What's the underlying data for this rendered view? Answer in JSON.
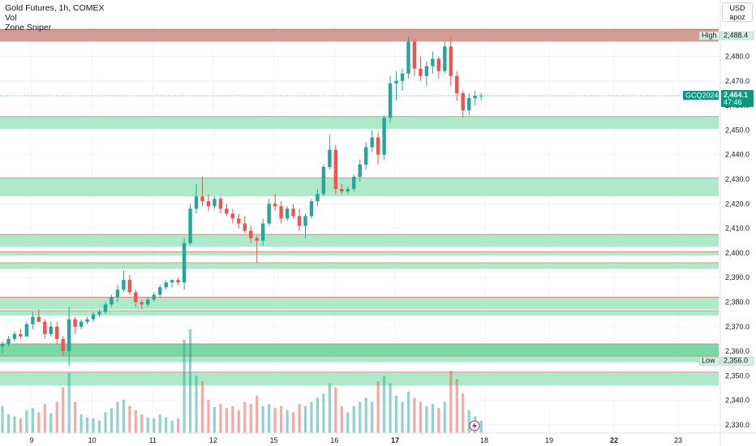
{
  "legend": {
    "symbol": "Gold Futures, 1h, COMEX",
    "vol": "Vol",
    "indicator": "Zone Sniper"
  },
  "scale": {
    "currency": "USD",
    "user": "apoz"
  },
  "tags": {
    "high_label": "High",
    "high_value": "2,488.4",
    "low_label": "Low",
    "low_value": "2,356.0",
    "ticker": "GCQ2024",
    "last_price": "2,464.1",
    "countdown": "47:46"
  },
  "colors": {
    "up": "#26a69a",
    "down": "#ef5350",
    "zone_green": "#a5e8c3",
    "zone_green_dark": "#6cd49a",
    "zone_red": "#c98b80",
    "zone_border_red": "#e57373"
  },
  "chart_data": {
    "type": "candlestick",
    "ylim": [
      2326,
      2491
    ],
    "yticks": [
      "2,330.0",
      "2,340.0",
      "2,350.0",
      "2,360.0",
      "2,370.0",
      "2,380.0",
      "2,390.0",
      "2,400.0",
      "2,410.0",
      "2,420.0",
      "2,430.0",
      "2,440.0",
      "2,450.0",
      "2,460.0",
      "2,470.0",
      "2,480.0"
    ],
    "xlabels": [
      "9",
      "10",
      "11",
      "12",
      "15",
      "16",
      "17",
      "18",
      "19",
      "22",
      "23"
    ],
    "day_dividers": [
      {
        "label": "9",
        "index": 4
      },
      {
        "label": "10",
        "index": 14
      },
      {
        "label": "11",
        "index": 24
      },
      {
        "label": "12",
        "index": 34
      },
      {
        "label": "15",
        "index": 44
      },
      {
        "label": "16",
        "index": 54
      },
      {
        "label": "17",
        "index": 64
      }
    ],
    "future_labels": [
      "18",
      "19",
      "22",
      "23"
    ],
    "zones": [
      {
        "from": 2486,
        "to": 2491,
        "style": "red"
      },
      {
        "from": 2450.5,
        "to": 2455.5,
        "style": "green"
      },
      {
        "from": 2423,
        "to": 2430.5,
        "style": "green"
      },
      {
        "from": 2402.5,
        "to": 2407.5,
        "style": "green"
      },
      {
        "from": 2399,
        "to": 2400.5,
        "style": "green"
      },
      {
        "from": 2393.5,
        "to": 2396,
        "style": "green"
      },
      {
        "from": 2377,
        "to": 2382,
        "style": "green"
      },
      {
        "from": 2374.5,
        "to": 2376.5,
        "style": "green"
      },
      {
        "from": 2358,
        "to": 2363,
        "style": "greendark"
      },
      {
        "from": 2355.5,
        "to": 2358,
        "style": "green"
      },
      {
        "from": 2346,
        "to": 2351.5,
        "style": "green"
      }
    ],
    "candles": [
      [
        2362,
        2364,
        2359,
        2363,
        26
      ],
      [
        2363,
        2366,
        2362,
        2365,
        18
      ],
      [
        2365,
        2368,
        2364,
        2367,
        16
      ],
      [
        2367,
        2369,
        2365,
        2366,
        14
      ],
      [
        2366,
        2372,
        2366,
        2371,
        22
      ],
      [
        2371,
        2376,
        2369,
        2374,
        24
      ],
      [
        2374,
        2377,
        2372,
        2372,
        20
      ],
      [
        2372,
        2373,
        2365,
        2367,
        28
      ],
      [
        2367,
        2372,
        2366,
        2370,
        19
      ],
      [
        2370,
        2372,
        2363,
        2365,
        30
      ],
      [
        2365,
        2366,
        2358,
        2360,
        44
      ],
      [
        2360,
        2378,
        2354,
        2373,
        58
      ],
      [
        2373,
        2374,
        2367,
        2370,
        30
      ],
      [
        2370,
        2373,
        2369,
        2372,
        18
      ],
      [
        2372,
        2374,
        2371,
        2373,
        15
      ],
      [
        2373,
        2376,
        2372,
        2375,
        14
      ],
      [
        2375,
        2377,
        2374,
        2376,
        12
      ],
      [
        2376,
        2380,
        2375,
        2379,
        20
      ],
      [
        2379,
        2383,
        2378,
        2382,
        24
      ],
      [
        2382,
        2387,
        2380,
        2385,
        30
      ],
      [
        2385,
        2393,
        2384,
        2389,
        32
      ],
      [
        2389,
        2391,
        2383,
        2384,
        26
      ],
      [
        2384,
        2385,
        2378,
        2380,
        22
      ],
      [
        2380,
        2381,
        2377,
        2379,
        18
      ],
      [
        2379,
        2382,
        2378,
        2381,
        15
      ],
      [
        2381,
        2384,
        2380,
        2383,
        14
      ],
      [
        2383,
        2387,
        2382,
        2386,
        18
      ],
      [
        2386,
        2389,
        2385,
        2388,
        15
      ],
      [
        2388,
        2389,
        2386,
        2389,
        12
      ],
      [
        2389,
        2390,
        2387,
        2388,
        14
      ],
      [
        2388,
        2406,
        2385,
        2404,
        90
      ],
      [
        2404,
        2420,
        2403,
        2418,
        100
      ],
      [
        2418,
        2428,
        2416,
        2423,
        55
      ],
      [
        2423,
        2431,
        2419,
        2421,
        50
      ],
      [
        2421,
        2424,
        2417,
        2419,
        32
      ],
      [
        2419,
        2423,
        2418,
        2422,
        25
      ],
      [
        2422,
        2423,
        2416,
        2418,
        28
      ],
      [
        2418,
        2420,
        2415,
        2416,
        24
      ],
      [
        2416,
        2418,
        2412,
        2414,
        26
      ],
      [
        2414,
        2416,
        2410,
        2412,
        22
      ],
      [
        2412,
        2415,
        2408,
        2409,
        30
      ],
      [
        2409,
        2411,
        2404,
        2406,
        28
      ],
      [
        2406,
        2407,
        2396,
        2405,
        36
      ],
      [
        2405,
        2414,
        2403,
        2412,
        26
      ],
      [
        2412,
        2422,
        2411,
        2420,
        28
      ],
      [
        2420,
        2424,
        2417,
        2419,
        24
      ],
      [
        2419,
        2421,
        2412,
        2414,
        26
      ],
      [
        2414,
        2419,
        2413,
        2418,
        22
      ],
      [
        2418,
        2420,
        2414,
        2415,
        20
      ],
      [
        2415,
        2418,
        2409,
        2411,
        28
      ],
      [
        2411,
        2416,
        2406,
        2415,
        26
      ],
      [
        2415,
        2422,
        2414,
        2421,
        30
      ],
      [
        2421,
        2426,
        2419,
        2424,
        34
      ],
      [
        2424,
        2436,
        2423,
        2435,
        38
      ],
      [
        2435,
        2448,
        2434,
        2442,
        48
      ],
      [
        2442,
        2444,
        2424,
        2426,
        44
      ],
      [
        2426,
        2428,
        2424,
        2425,
        26
      ],
      [
        2425,
        2427,
        2424,
        2426,
        20
      ],
      [
        2426,
        2432,
        2425,
        2431,
        26
      ],
      [
        2431,
        2438,
        2429,
        2436,
        30
      ],
      [
        2436,
        2445,
        2434,
        2443,
        34
      ],
      [
        2443,
        2450,
        2441,
        2447,
        30
      ],
      [
        2447,
        2449,
        2436,
        2440,
        50
      ],
      [
        2440,
        2456,
        2438,
        2455,
        55
      ],
      [
        2455,
        2472,
        2453,
        2469,
        48
      ],
      [
        2469,
        2474,
        2462,
        2470,
        36
      ],
      [
        2470,
        2475,
        2466,
        2473,
        30
      ],
      [
        2473,
        2488,
        2471,
        2486,
        40
      ],
      [
        2486,
        2487,
        2472,
        2475,
        34
      ],
      [
        2475,
        2480,
        2470,
        2472,
        30
      ],
      [
        2472,
        2478,
        2468,
        2476,
        26
      ],
      [
        2476,
        2482,
        2473,
        2479,
        28
      ],
      [
        2479,
        2480,
        2471,
        2474,
        24
      ],
      [
        2474,
        2486,
        2473,
        2484,
        30
      ],
      [
        2484,
        2488,
        2468,
        2472,
        60
      ],
      [
        2472,
        2474,
        2462,
        2465,
        52
      ],
      [
        2465,
        2466,
        2455,
        2458,
        38
      ],
      [
        2458,
        2465,
        2456,
        2463,
        22
      ],
      [
        2463,
        2466,
        2460,
        2464,
        16
      ],
      [
        2464,
        2465,
        2462,
        2464,
        12
      ]
    ]
  }
}
